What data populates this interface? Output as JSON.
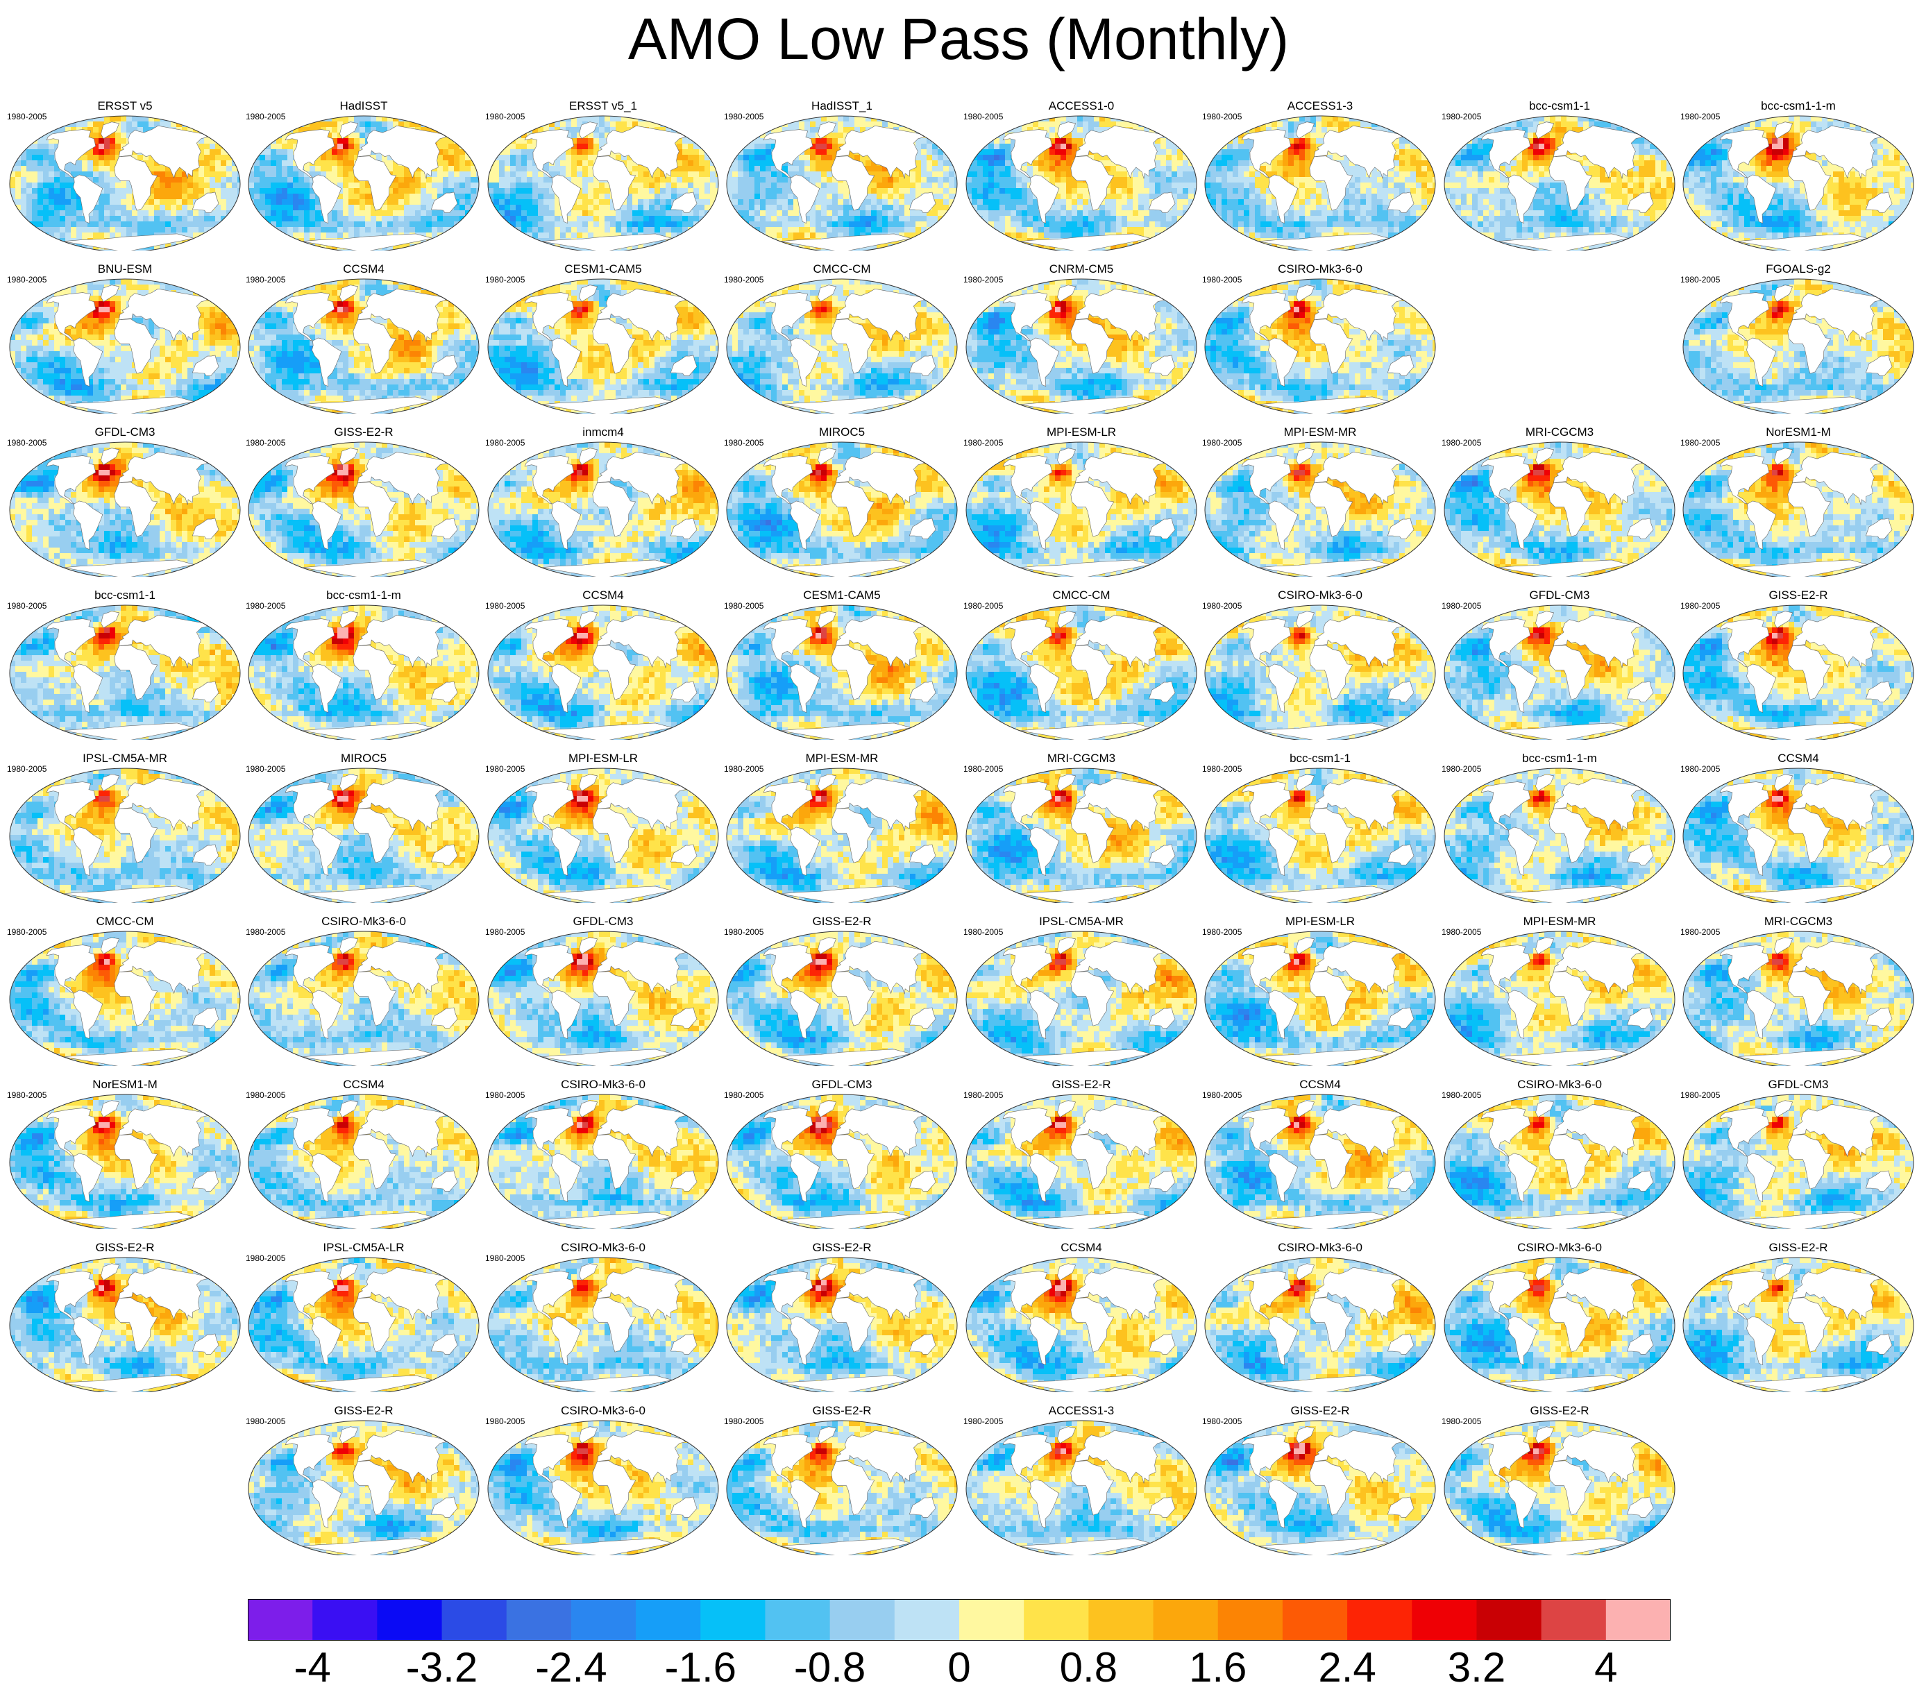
{
  "title": "AMO Low Pass (Monthly)",
  "period": "1980-2005",
  "chart_data": {
    "type": "heatmap",
    "title": "AMO Low Pass (Monthly)",
    "grid_columns": 8,
    "panels": [
      {
        "row": 0,
        "col": 0,
        "name": "ERSST v5",
        "period": "1980-2005"
      },
      {
        "row": 0,
        "col": 1,
        "name": "HadISST",
        "period": "1980-2005"
      },
      {
        "row": 0,
        "col": 2,
        "name": "ERSST v5_1",
        "period": "1980-2005"
      },
      {
        "row": 0,
        "col": 3,
        "name": "HadISST_1",
        "period": "1980-2005"
      },
      {
        "row": 0,
        "col": 4,
        "name": "ACCESS1-0",
        "period": "1980-2005"
      },
      {
        "row": 0,
        "col": 5,
        "name": "ACCESS1-3",
        "period": "1980-2005"
      },
      {
        "row": 0,
        "col": 6,
        "name": "bcc-csm1-1",
        "period": "1980-2005"
      },
      {
        "row": 0,
        "col": 7,
        "name": "bcc-csm1-1-m",
        "period": "1980-2005"
      },
      {
        "row": 1,
        "col": 0,
        "name": "BNU-ESM",
        "period": "1980-2005"
      },
      {
        "row": 1,
        "col": 1,
        "name": "CCSM4",
        "period": "1980-2005"
      },
      {
        "row": 1,
        "col": 2,
        "name": "CESM1-CAM5",
        "period": "1980-2005"
      },
      {
        "row": 1,
        "col": 3,
        "name": "CMCC-CM",
        "period": "1980-2005"
      },
      {
        "row": 1,
        "col": 4,
        "name": "CNRM-CM5",
        "period": "1980-2005"
      },
      {
        "row": 1,
        "col": 5,
        "name": "CSIRO-Mk3-6-0",
        "period": "1980-2005"
      },
      {
        "row": 1,
        "col": 7,
        "name": "FGOALS-g2",
        "period": "1980-2005"
      },
      {
        "row": 2,
        "col": 0,
        "name": "GFDL-CM3",
        "period": "1980-2005"
      },
      {
        "row": 2,
        "col": 1,
        "name": "GISS-E2-R",
        "period": "1980-2005"
      },
      {
        "row": 2,
        "col": 2,
        "name": "inmcm4",
        "period": "1980-2005"
      },
      {
        "row": 2,
        "col": 3,
        "name": "MIROC5",
        "period": "1980-2005"
      },
      {
        "row": 2,
        "col": 4,
        "name": "MPI-ESM-LR",
        "period": "1980-2005"
      },
      {
        "row": 2,
        "col": 5,
        "name": "MPI-ESM-MR",
        "period": "1980-2005"
      },
      {
        "row": 2,
        "col": 6,
        "name": "MRI-CGCM3",
        "period": "1980-2005"
      },
      {
        "row": 2,
        "col": 7,
        "name": "NorESM1-M",
        "period": "1980-2005"
      },
      {
        "row": 3,
        "col": 0,
        "name": "bcc-csm1-1",
        "period": "1980-2005"
      },
      {
        "row": 3,
        "col": 1,
        "name": "bcc-csm1-1-m",
        "period": "1980-2005"
      },
      {
        "row": 3,
        "col": 2,
        "name": "CCSM4",
        "period": "1980-2005"
      },
      {
        "row": 3,
        "col": 3,
        "name": "CESM1-CAM5",
        "period": "1980-2005"
      },
      {
        "row": 3,
        "col": 4,
        "name": "CMCC-CM",
        "period": "1980-2005"
      },
      {
        "row": 3,
        "col": 5,
        "name": "CSIRO-Mk3-6-0",
        "period": "1980-2005"
      },
      {
        "row": 3,
        "col": 6,
        "name": "GFDL-CM3",
        "period": "1980-2005"
      },
      {
        "row": 3,
        "col": 7,
        "name": "GISS-E2-R",
        "period": "1980-2005"
      },
      {
        "row": 4,
        "col": 0,
        "name": "IPSL-CM5A-MR",
        "period": "1980-2005"
      },
      {
        "row": 4,
        "col": 1,
        "name": "MIROC5",
        "period": "1980-2005"
      },
      {
        "row": 4,
        "col": 2,
        "name": "MPI-ESM-LR",
        "period": "1980-2005"
      },
      {
        "row": 4,
        "col": 3,
        "name": "MPI-ESM-MR",
        "period": "1980-2005"
      },
      {
        "row": 4,
        "col": 4,
        "name": "MRI-CGCM3",
        "period": "1980-2005"
      },
      {
        "row": 4,
        "col": 5,
        "name": "bcc-csm1-1",
        "period": "1980-2005"
      },
      {
        "row": 4,
        "col": 6,
        "name": "bcc-csm1-1-m",
        "period": "1980-2005"
      },
      {
        "row": 4,
        "col": 7,
        "name": "CCSM4",
        "period": "1980-2005"
      },
      {
        "row": 5,
        "col": 0,
        "name": "CMCC-CM",
        "period": "1980-2005"
      },
      {
        "row": 5,
        "col": 1,
        "name": "CSIRO-Mk3-6-0",
        "period": "1980-2005"
      },
      {
        "row": 5,
        "col": 2,
        "name": "GFDL-CM3",
        "period": "1980-2005"
      },
      {
        "row": 5,
        "col": 3,
        "name": "GISS-E2-R",
        "period": "1980-2005"
      },
      {
        "row": 5,
        "col": 4,
        "name": "IPSL-CM5A-MR",
        "period": "1980-2005"
      },
      {
        "row": 5,
        "col": 5,
        "name": "MPI-ESM-LR",
        "period": "1980-2005"
      },
      {
        "row": 5,
        "col": 6,
        "name": "MPI-ESM-MR",
        "period": "1980-2005"
      },
      {
        "row": 5,
        "col": 7,
        "name": "MRI-CGCM3",
        "period": "1980-2005"
      },
      {
        "row": 6,
        "col": 0,
        "name": "NorESM1-M",
        "period": "1980-2005"
      },
      {
        "row": 6,
        "col": 1,
        "name": "CCSM4",
        "period": "1980-2005"
      },
      {
        "row": 6,
        "col": 2,
        "name": "CSIRO-Mk3-6-0",
        "period": "1980-2005"
      },
      {
        "row": 6,
        "col": 3,
        "name": "GFDL-CM3",
        "period": "1980-2005"
      },
      {
        "row": 6,
        "col": 4,
        "name": "GISS-E2-R",
        "period": "1980-2005"
      },
      {
        "row": 6,
        "col": 5,
        "name": "CCSM4",
        "period": "1980-2005"
      },
      {
        "row": 6,
        "col": 6,
        "name": "CSIRO-Mk3-6-0",
        "period": "1980-2005"
      },
      {
        "row": 6,
        "col": 7,
        "name": "GFDL-CM3",
        "period": "1980-2005"
      },
      {
        "row": 7,
        "col": 0,
        "name": "GISS-E2-R",
        "period": ""
      },
      {
        "row": 7,
        "col": 1,
        "name": "IPSL-CM5A-LR",
        "period": "1980-2005"
      },
      {
        "row": 7,
        "col": 2,
        "name": "CSIRO-Mk3-6-0",
        "period": "1980-2005"
      },
      {
        "row": 7,
        "col": 3,
        "name": "GISS-E2-R",
        "period": ""
      },
      {
        "row": 7,
        "col": 4,
        "name": "CCSM4",
        "period": ""
      },
      {
        "row": 7,
        "col": 5,
        "name": "CSIRO-Mk3-6-0",
        "period": ""
      },
      {
        "row": 7,
        "col": 6,
        "name": "CSIRO-Mk3-6-0",
        "period": ""
      },
      {
        "row": 7,
        "col": 7,
        "name": "GISS-E2-R",
        "period": ""
      },
      {
        "row": 8,
        "col": 1,
        "name": "GISS-E2-R",
        "period": "1980-2005"
      },
      {
        "row": 8,
        "col": 2,
        "name": "CSIRO-Mk3-6-0",
        "period": "1980-2005"
      },
      {
        "row": 8,
        "col": 3,
        "name": "GISS-E2-R",
        "period": "1980-2005"
      },
      {
        "row": 8,
        "col": 4,
        "name": "ACCESS1-3",
        "period": "1980-2005"
      },
      {
        "row": 8,
        "col": 5,
        "name": "GISS-E2-R",
        "period": "1980-2005"
      },
      {
        "row": 8,
        "col": 6,
        "name": "GISS-E2-R",
        "period": "1980-2005"
      }
    ],
    "colorbar": {
      "range": [
        -4.4,
        4.4
      ],
      "step": 0.4,
      "colors": [
        "#7d1eea",
        "#3a0ff3",
        "#0a0af5",
        "#2b4be6",
        "#3a72e2",
        "#2a86f0",
        "#169ef8",
        "#06c0f8",
        "#52c2f2",
        "#98cef0",
        "#bee2f5",
        "#fff8a0",
        "#ffe34a",
        "#fdc21f",
        "#fca70c",
        "#fc8404",
        "#fd5a05",
        "#fd2405",
        "#ef0005",
        "#c90004",
        "#dd4444",
        "#fcb1b1"
      ],
      "tick_values": [
        -4,
        -3.2,
        -2.4,
        -1.6,
        -0.8,
        0,
        0.8,
        1.6,
        2.4,
        3.2,
        4
      ],
      "tick_labels": [
        "-4",
        "-3.2",
        "-2.4",
        "-1.6",
        "-0.8",
        "0",
        "0.8",
        "1.6",
        "2.4",
        "3.2",
        "4"
      ]
    }
  }
}
